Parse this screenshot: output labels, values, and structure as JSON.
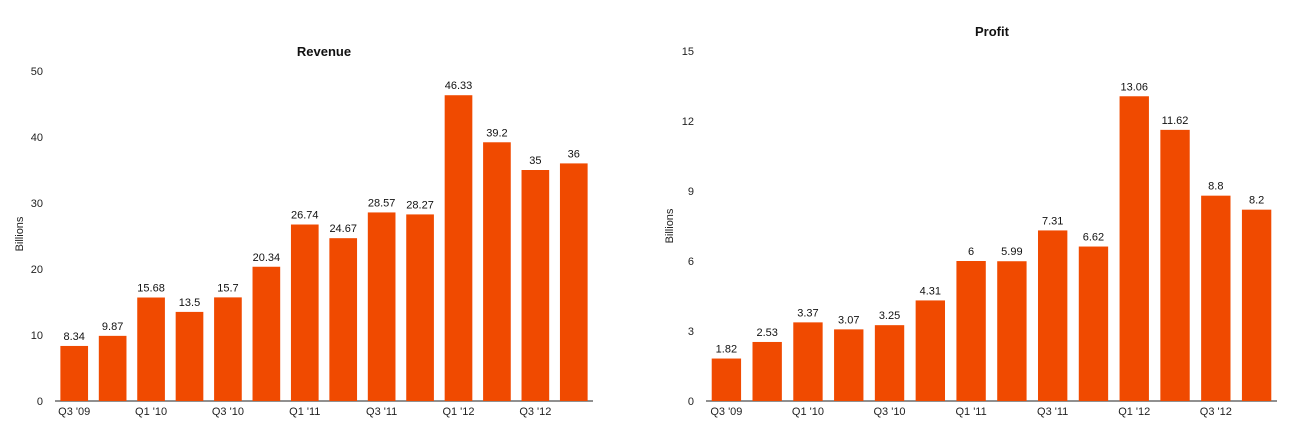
{
  "chart_data": [
    {
      "type": "bar",
      "title": "Revenue",
      "xlabel": "",
      "ylabel": "Billions",
      "ylim": [
        0,
        50
      ],
      "yticks": [
        "0",
        "10",
        "20",
        "30",
        "40",
        "50"
      ],
      "categories": [
        "Q3 '09",
        "",
        "Q1 '10",
        "",
        "Q3 '10",
        "",
        "Q1 '11",
        "",
        "Q3 '11",
        "",
        "Q1 '12",
        "",
        "Q3 '12",
        ""
      ],
      "values": [
        8.34,
        9.87,
        15.68,
        13.5,
        15.7,
        20.34,
        26.74,
        24.67,
        28.57,
        28.27,
        46.33,
        39.2,
        35,
        36
      ],
      "value_labels": [
        "8.34",
        "9.87",
        "15.68",
        "13.5",
        "15.7",
        "20.34",
        "26.74",
        "24.67",
        "28.57",
        "28.27",
        "46.33",
        "39.2",
        "35",
        "36"
      ],
      "bar_color": "#f04a00",
      "grid": false
    },
    {
      "type": "bar",
      "title": "Profit",
      "xlabel": "",
      "ylabel": "Billions",
      "ylim": [
        0,
        15
      ],
      "yticks": [
        "0",
        "3",
        "6",
        "9",
        "12",
        "15"
      ],
      "categories": [
        "Q3 '09",
        "",
        "Q1 '10",
        "",
        "Q3 '10",
        "",
        "Q1 '11",
        "",
        "Q3 '11",
        "",
        "Q1 '12",
        "",
        "Q3 '12",
        ""
      ],
      "values": [
        1.82,
        2.53,
        3.37,
        3.07,
        3.25,
        4.31,
        6,
        5.99,
        7.31,
        6.62,
        13.06,
        11.62,
        8.8,
        8.2
      ],
      "value_labels": [
        "1.82",
        "2.53",
        "3.37",
        "3.07",
        "3.25",
        "4.31",
        "6",
        "5.99",
        "7.31",
        "6.62",
        "13.06",
        "11.62",
        "8.8",
        "8.2"
      ],
      "bar_color": "#f04a00",
      "grid": false
    }
  ]
}
